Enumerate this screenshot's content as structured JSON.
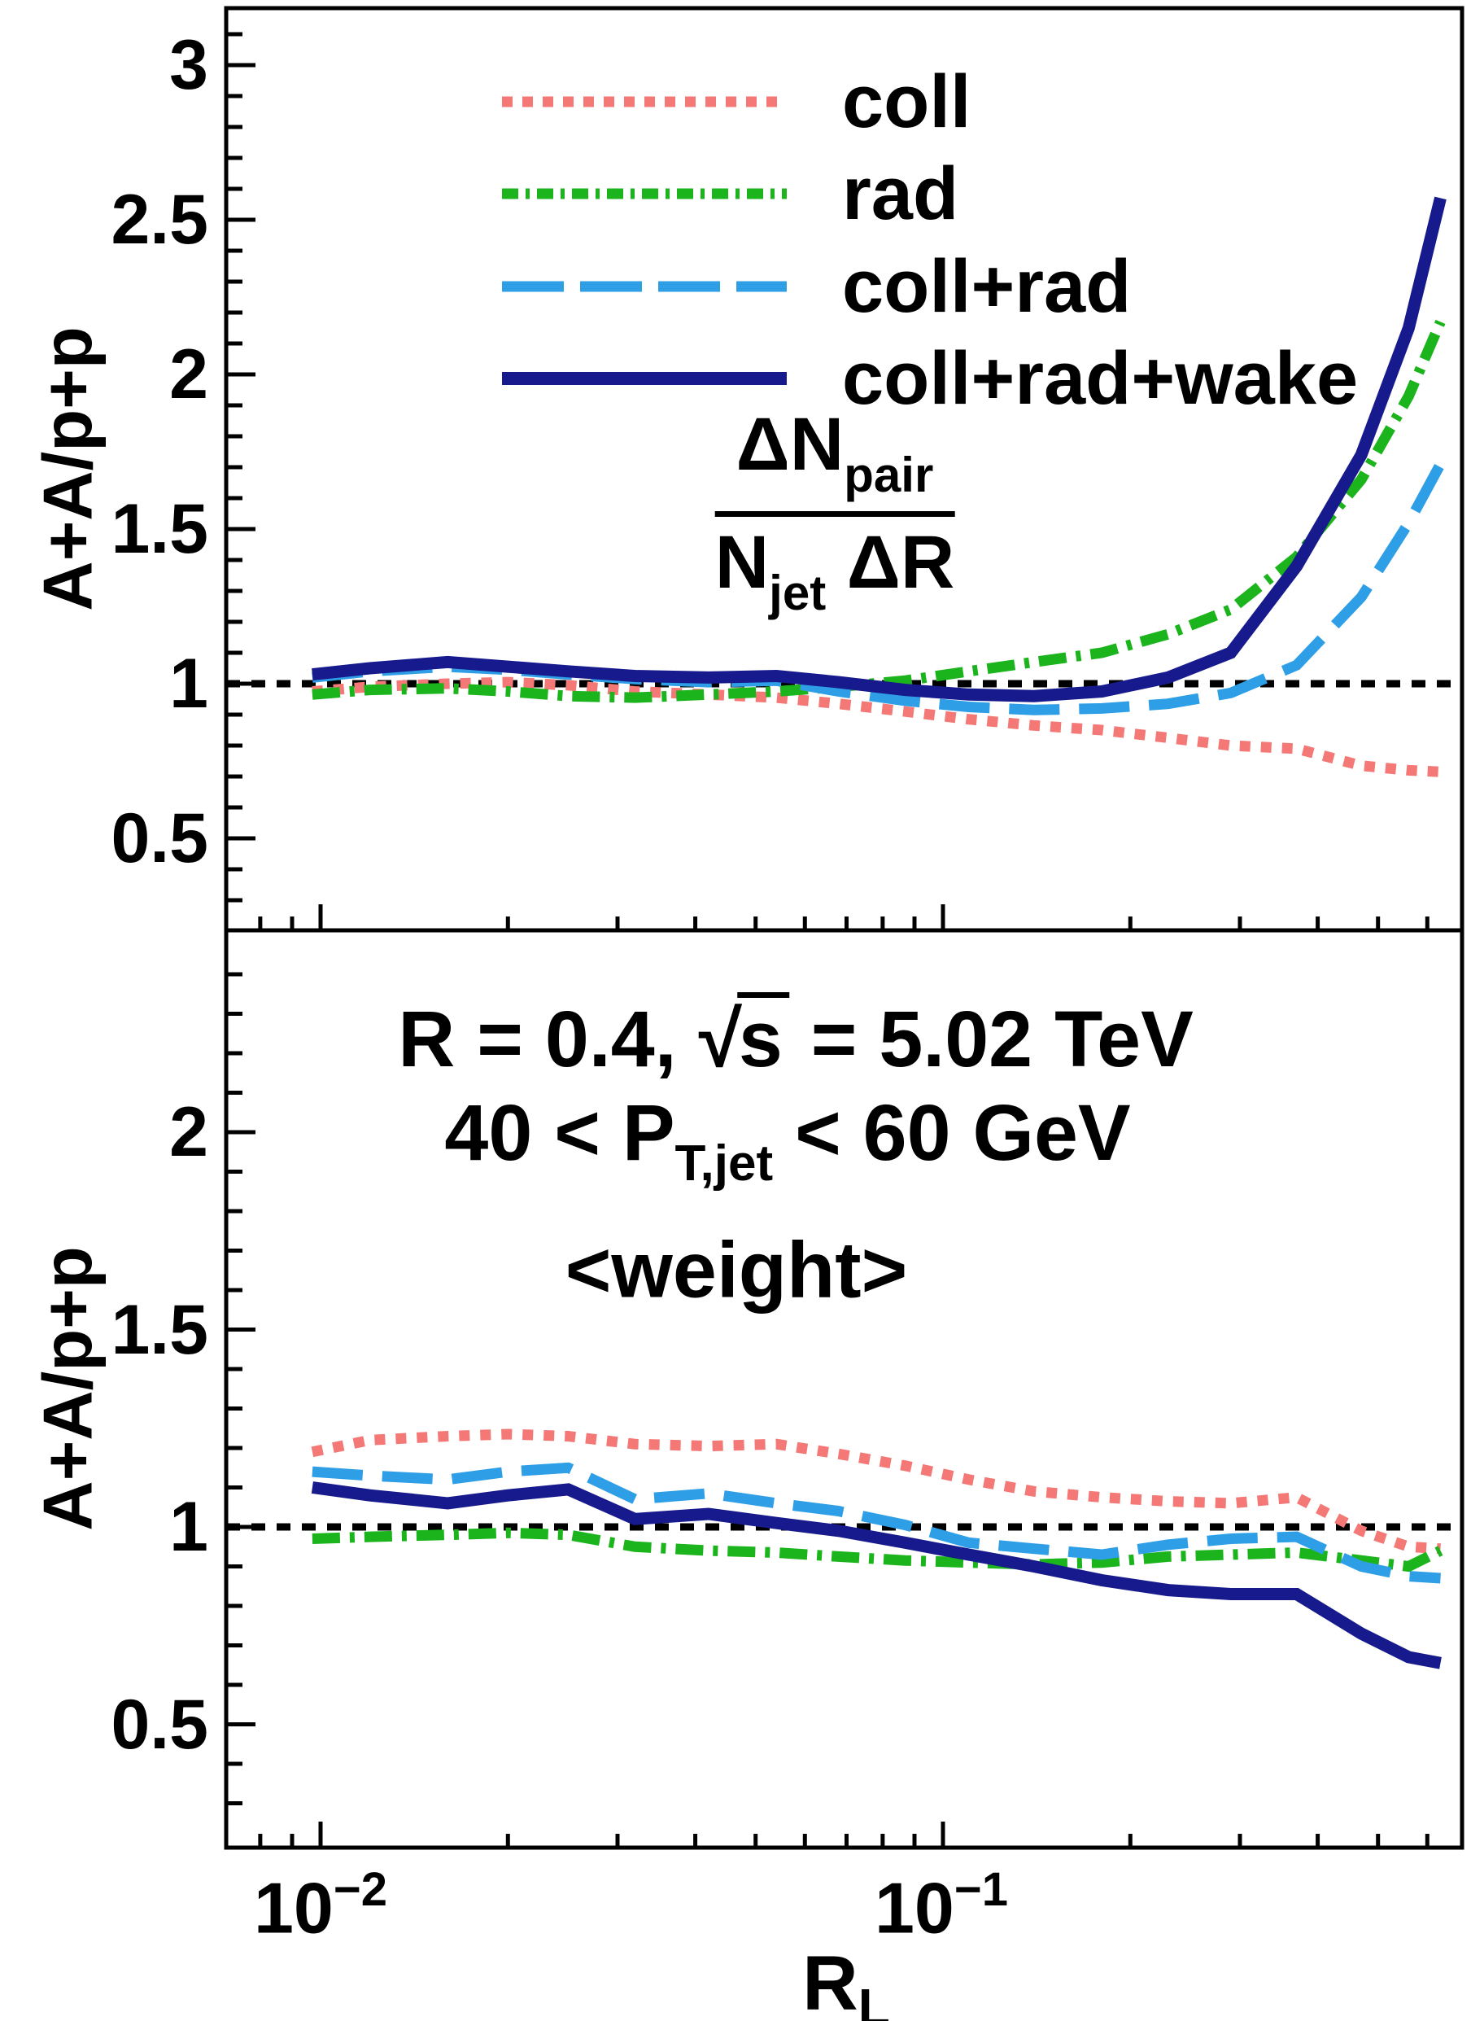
{
  "axes": {
    "y_title": "A+A/p+p",
    "y_title_bottom": "A+A/p+p",
    "x_title_main": "R",
    "x_title_sub": "L",
    "x_ticks": [
      {
        "base": "10",
        "exp": "−2"
      },
      {
        "base": "10",
        "exp": "−1"
      }
    ],
    "y_tick_labels_top": [
      "0.5",
      "1",
      "1.5",
      "2",
      "2.5",
      "3"
    ],
    "y_tick_values_top": [
      0.5,
      1,
      1.5,
      2,
      2.5,
      3
    ],
    "y_tick_labels_bottom": [
      "0.5",
      "1",
      "1.5",
      "2"
    ],
    "y_tick_values_bottom": [
      0.5,
      1,
      1.5,
      2
    ]
  },
  "legend": {
    "items": [
      {
        "label": "coll",
        "color": "#F47876",
        "style": "dotted"
      },
      {
        "label": "rad",
        "color": "#1CB41C",
        "style": "dashdot"
      },
      {
        "label": "coll+rad",
        "color": "#2E9FE6",
        "style": "dashed"
      },
      {
        "label": "coll+rad+wake",
        "color": "#171A8C",
        "style": "solid"
      }
    ]
  },
  "formula": {
    "num_main": "ΔN",
    "num_sub": "pair",
    "den_main": "N",
    "den_sub": "jet",
    "den_tail": " ΔR"
  },
  "annotations": {
    "line1": {
      "prefix": "R = 0.4, ",
      "sqrt_sign": "√",
      "sqrt_arg": "s",
      "suffix": " = 5.02 TeV"
    },
    "line2": {
      "pre": "40 < P",
      "sub": "T,jet",
      "post": " < 60 GeV"
    },
    "line3": "<weight>"
  },
  "chart_data": [
    {
      "panel": "top",
      "type": "line",
      "x_scale": "log",
      "xlabel": "R_L",
      "ylabel": "A+A/p+p",
      "xlim": [
        0.00714,
        0.689
      ],
      "ylim": [
        0.21,
        3.18
      ],
      "reference_line_y": 1,
      "grid": false,
      "legend_position": "top-center",
      "x": [
        0.0097,
        0.012,
        0.016,
        0.02,
        0.025,
        0.032,
        0.042,
        0.054,
        0.068,
        0.087,
        0.11,
        0.14,
        0.18,
        0.23,
        0.29,
        0.37,
        0.47,
        0.56,
        0.63
      ],
      "series": [
        {
          "name": "coll",
          "style": "dotted",
          "color": "#F47876",
          "values": [
            0.975,
            0.99,
            1.0,
            1.005,
            0.995,
            0.975,
            0.965,
            0.955,
            0.935,
            0.91,
            0.885,
            0.865,
            0.85,
            0.825,
            0.8,
            0.79,
            0.735,
            0.72,
            0.715
          ]
        },
        {
          "name": "rad",
          "style": "dashdot",
          "color": "#1CB41C",
          "values": [
            0.965,
            0.98,
            0.985,
            0.975,
            0.96,
            0.955,
            0.965,
            0.975,
            0.99,
            1.01,
            1.04,
            1.07,
            1.1,
            1.16,
            1.24,
            1.41,
            1.66,
            1.93,
            2.17
          ]
        },
        {
          "name": "coll+rad",
          "style": "dashed",
          "color": "#2E9FE6",
          "values": [
            1.02,
            1.04,
            1.055,
            1.045,
            1.03,
            1.015,
            1.005,
            1.01,
            0.975,
            0.945,
            0.925,
            0.915,
            0.92,
            0.935,
            0.97,
            1.06,
            1.28,
            1.52,
            1.71
          ]
        },
        {
          "name": "coll+rad+wake",
          "style": "solid",
          "color": "#171A8C",
          "values": [
            1.03,
            1.05,
            1.07,
            1.055,
            1.04,
            1.025,
            1.02,
            1.025,
            1.005,
            0.98,
            0.965,
            0.96,
            0.975,
            1.02,
            1.1,
            1.38,
            1.74,
            2.15,
            2.57
          ]
        }
      ]
    },
    {
      "panel": "bottom",
      "type": "line",
      "x_scale": "log",
      "xlabel": "R_L",
      "ylabel": "A+A/p+p",
      "xlim": [
        0.00714,
        0.689
      ],
      "ylim": [
        0.185,
        2.51
      ],
      "reference_line_y": 1,
      "grid": false,
      "x": [
        0.0097,
        0.012,
        0.016,
        0.02,
        0.025,
        0.032,
        0.042,
        0.054,
        0.068,
        0.087,
        0.11,
        0.14,
        0.18,
        0.23,
        0.29,
        0.37,
        0.47,
        0.56,
        0.63
      ],
      "series": [
        {
          "name": "coll",
          "style": "dotted",
          "color": "#F47876",
          "values": [
            1.19,
            1.22,
            1.23,
            1.235,
            1.23,
            1.21,
            1.205,
            1.21,
            1.185,
            1.155,
            1.12,
            1.09,
            1.075,
            1.065,
            1.06,
            1.075,
            0.99,
            0.95,
            0.945
          ]
        },
        {
          "name": "rad",
          "style": "dashdot",
          "color": "#1CB41C",
          "values": [
            0.97,
            0.975,
            0.98,
            0.985,
            0.98,
            0.95,
            0.94,
            0.935,
            0.925,
            0.915,
            0.91,
            0.905,
            0.91,
            0.925,
            0.93,
            0.935,
            0.915,
            0.9,
            0.94
          ]
        },
        {
          "name": "coll+rad",
          "style": "dashed",
          "color": "#2E9FE6",
          "values": [
            1.14,
            1.13,
            1.12,
            1.14,
            1.15,
            1.07,
            1.085,
            1.06,
            1.04,
            1.005,
            0.96,
            0.945,
            0.93,
            0.955,
            0.97,
            0.975,
            0.9,
            0.875,
            0.87
          ]
        },
        {
          "name": "coll+rad+wake",
          "style": "solid",
          "color": "#171A8C",
          "values": [
            1.1,
            1.08,
            1.06,
            1.08,
            1.095,
            1.02,
            1.033,
            1.01,
            0.99,
            0.96,
            0.93,
            0.9,
            0.865,
            0.84,
            0.83,
            0.83,
            0.73,
            0.67,
            0.655
          ]
        }
      ]
    }
  ]
}
